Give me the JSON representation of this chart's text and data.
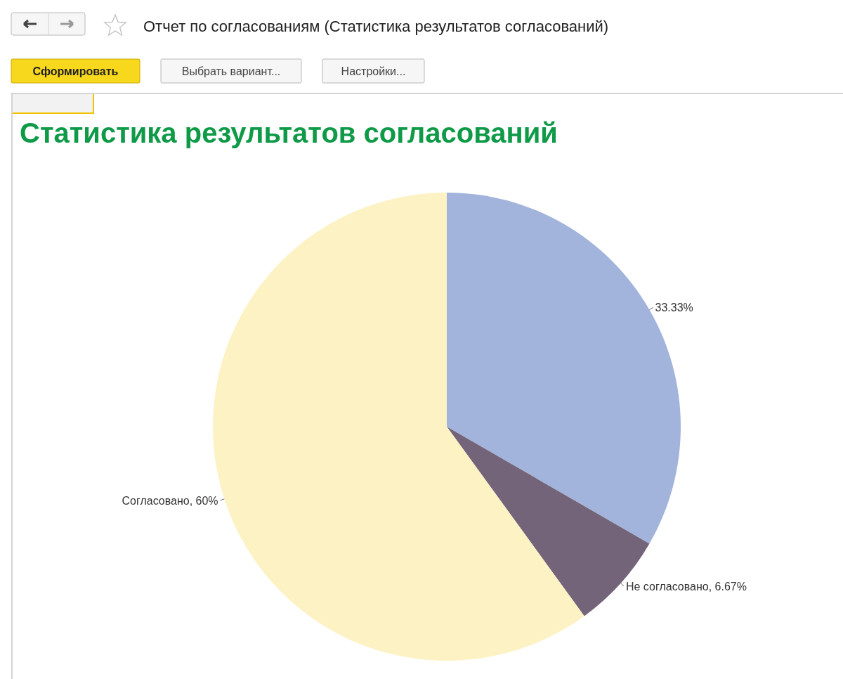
{
  "chart_data": {
    "type": "pie",
    "title": "Статистика результатов согласований",
    "categories": [
      null,
      "Не согласовано",
      "Согласовано"
    ],
    "values": [
      33.33,
      6.67,
      60
    ],
    "colors": [
      "#a2b4dc",
      "#746479",
      "#fcf2c3"
    ],
    "value_labels": [
      "33.33%",
      ", 6.67%",
      ", 60%"
    ],
    "annotations": [
      "Отчет по согласованиям (Статистика результатов согласований)",
      "Сформировать",
      "Выбрать вариант...",
      "Настройки..."
    ]
  }
}
